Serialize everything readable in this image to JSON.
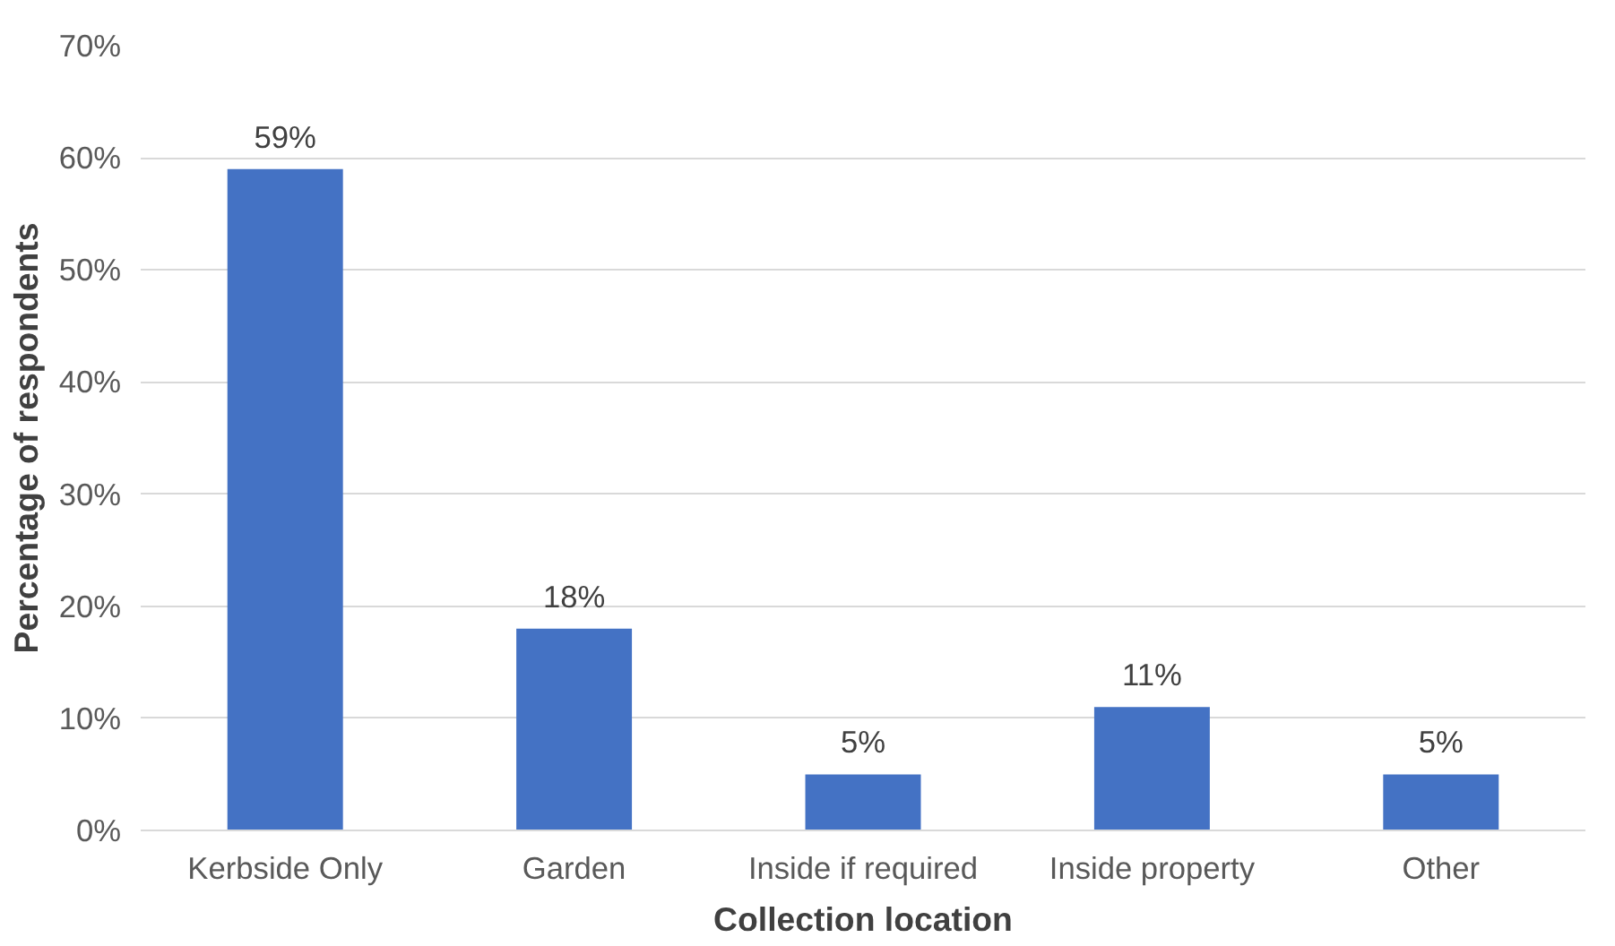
{
  "chart_data": {
    "type": "bar",
    "xlabel": "Collection location",
    "ylabel": "Percentage of respondents",
    "categories": [
      "Kerbside Only",
      "Garden",
      "Inside if required",
      "Inside property",
      "Other"
    ],
    "values": [
      59,
      18,
      5,
      11,
      5
    ],
    "color": "#4472c4",
    "value_labels": [
      "59%",
      "18%",
      "5%",
      "11%",
      "5%"
    ],
    "ylim": [
      0,
      70
    ],
    "yticks": [
      {
        "value": 0,
        "label": "0%"
      },
      {
        "value": 10,
        "label": "10%"
      },
      {
        "value": 20,
        "label": "20%"
      },
      {
        "value": 30,
        "label": "30%"
      },
      {
        "value": 40,
        "label": "40%"
      },
      {
        "value": 50,
        "label": "50%"
      },
      {
        "value": 60,
        "label": "60%"
      },
      {
        "value": 70,
        "label": "70%"
      }
    ],
    "grid": "y"
  }
}
